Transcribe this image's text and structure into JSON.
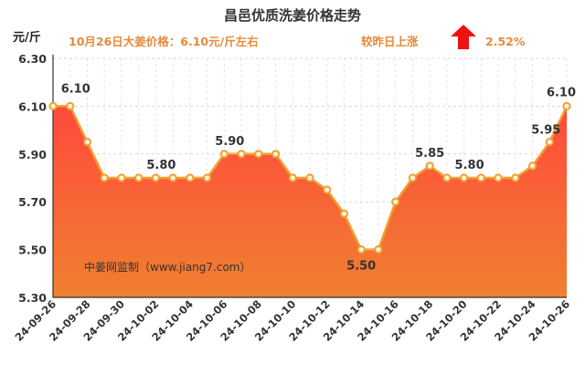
{
  "title": "昌邑优质洗姜价格走势",
  "unit_label": "元/斤",
  "price_info": "10月26日大姜价格：6.10元/斤左右",
  "change_info": "较昨日上涨",
  "change_percent": "2.52%",
  "watermark": "中姜网监制（www.jiang7.com）",
  "colors": {
    "line": "#f0a030",
    "fill_top": "#ff4a3c",
    "fill_bottom": "#f08030",
    "up_arrow": "#ee1111",
    "accent_text": "#e8893a"
  },
  "chart_data": {
    "type": "area",
    "title": "昌邑优质洗姜价格走势",
    "ylabel": "元/斤",
    "xlabel": "",
    "ylim": [
      5.3,
      6.3
    ],
    "yticks": [
      "5.30",
      "5.50",
      "5.70",
      "5.90",
      "6.10",
      "6.30"
    ],
    "grid": true,
    "x": [
      "24-09-26",
      "24-09-27",
      "24-09-28",
      "24-09-29",
      "24-09-30",
      "24-10-01",
      "24-10-02",
      "24-10-03",
      "24-10-04",
      "24-10-05",
      "24-10-06",
      "24-10-07",
      "24-10-08",
      "24-10-09",
      "24-10-10",
      "24-10-11",
      "24-10-12",
      "24-10-13",
      "24-10-14",
      "24-10-15",
      "24-10-16",
      "24-10-17",
      "24-10-18",
      "24-10-19",
      "24-10-20",
      "24-10-21",
      "24-10-22",
      "24-10-23",
      "24-10-24",
      "24-10-25",
      "24-10-26"
    ],
    "xtick_labels": [
      "24-09-26",
      "24-09-28",
      "24-09-30",
      "24-10-02",
      "24-10-04",
      "24-10-06",
      "24-10-08",
      "24-10-10",
      "24-10-12",
      "24-10-14",
      "24-10-16",
      "24-10-18",
      "24-10-20",
      "24-10-22",
      "24-10-24",
      "24-10-26"
    ],
    "values": [
      6.1,
      6.1,
      5.95,
      5.8,
      5.8,
      5.8,
      5.8,
      5.8,
      5.8,
      5.8,
      5.9,
      5.9,
      5.9,
      5.9,
      5.8,
      5.8,
      5.75,
      5.65,
      5.5,
      5.5,
      5.7,
      5.8,
      5.85,
      5.8,
      5.8,
      5.8,
      5.8,
      5.8,
      5.85,
      5.95,
      6.1
    ],
    "data_labels": [
      {
        "index": 1,
        "text": "6.10"
      },
      {
        "index": 6,
        "text": "5.80"
      },
      {
        "index": 10,
        "text": "5.90"
      },
      {
        "index": 18,
        "text": "5.50"
      },
      {
        "index": 22,
        "text": "5.85"
      },
      {
        "index": 24,
        "text": "5.80"
      },
      {
        "index": 29,
        "text": "5.95"
      },
      {
        "index": 30,
        "text": "6.10"
      }
    ]
  }
}
